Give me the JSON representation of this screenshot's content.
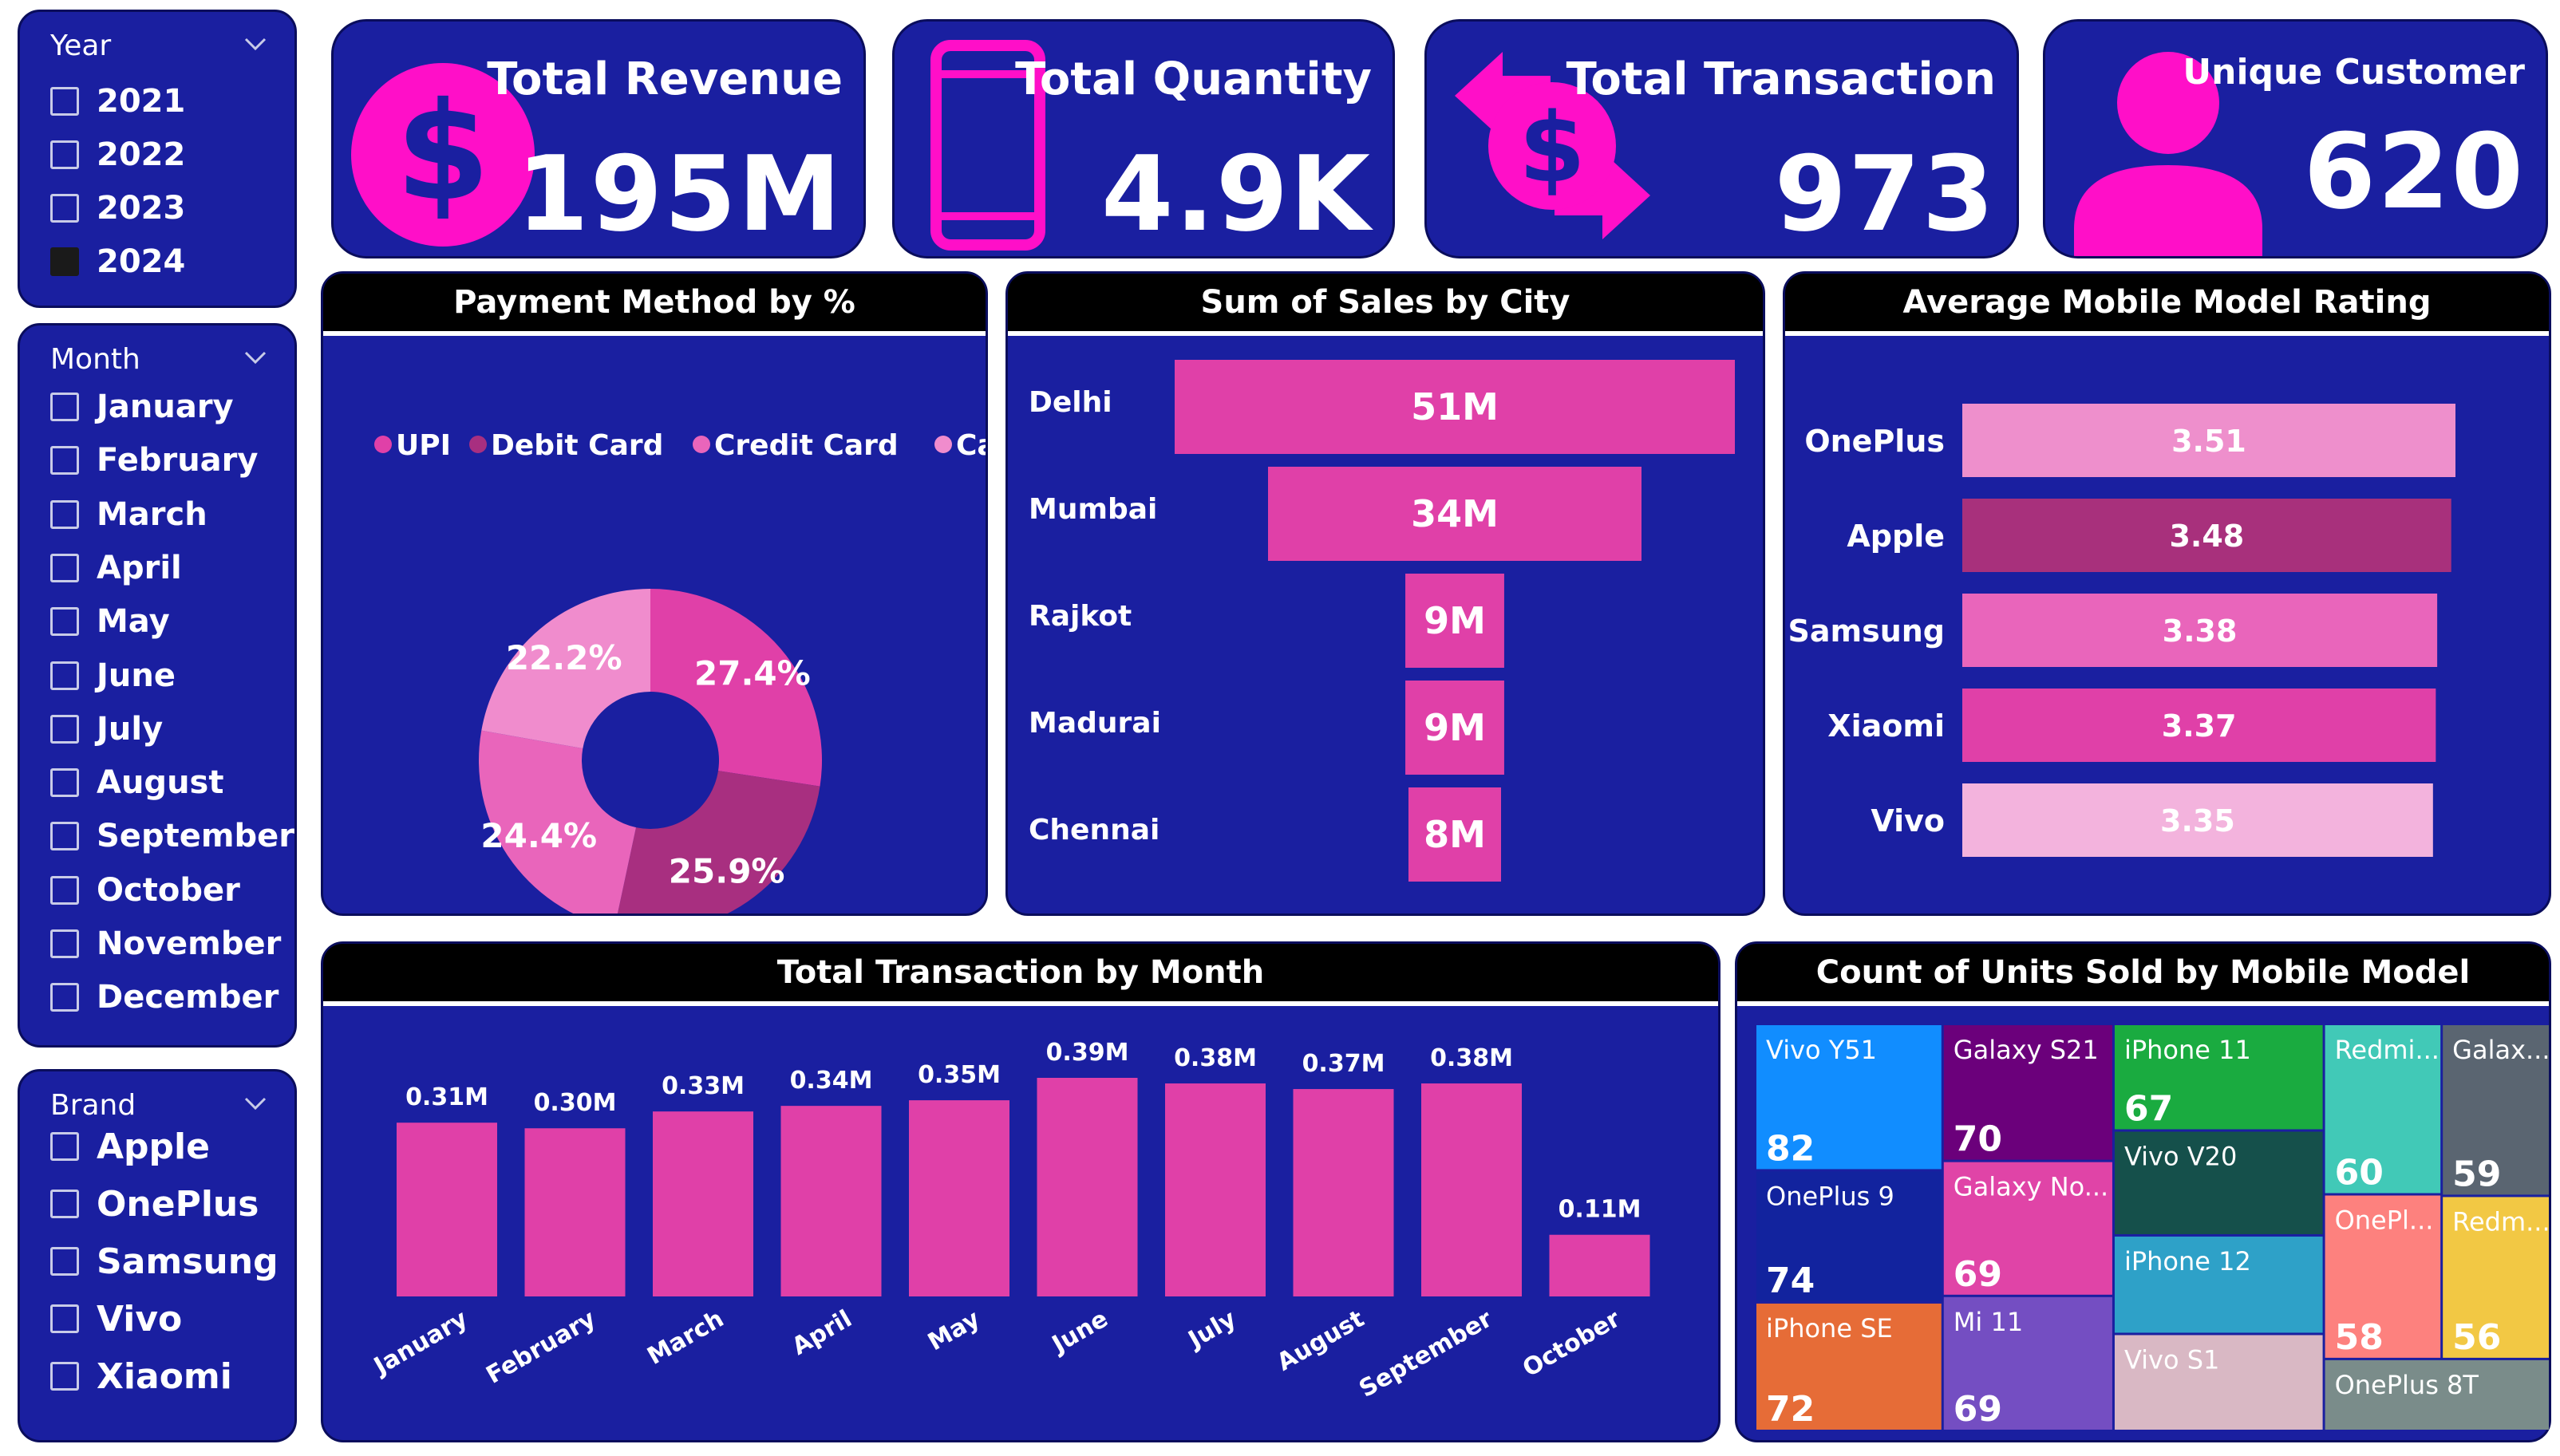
{
  "colors": {
    "panel": "#1a1fa0",
    "panel_border": "#0a0d5c",
    "accent": "#e040a8",
    "icon_magenta": "#ff0fc8",
    "header_black": "#000000"
  },
  "slicers": {
    "year": {
      "title": "Year",
      "items": [
        {
          "label": "2021",
          "checked": false
        },
        {
          "label": "2022",
          "checked": false
        },
        {
          "label": "2023",
          "checked": false
        },
        {
          "label": "2024",
          "checked": true
        }
      ]
    },
    "month": {
      "title": "Month",
      "items": [
        {
          "label": "January",
          "checked": false
        },
        {
          "label": "February",
          "checked": false
        },
        {
          "label": "March",
          "checked": false
        },
        {
          "label": "April",
          "checked": false
        },
        {
          "label": "May",
          "checked": false
        },
        {
          "label": "June",
          "checked": false
        },
        {
          "label": "July",
          "checked": false
        },
        {
          "label": "August",
          "checked": false
        },
        {
          "label": "September",
          "checked": false
        },
        {
          "label": "October",
          "checked": false
        },
        {
          "label": "November",
          "checked": false
        },
        {
          "label": "December",
          "checked": false
        }
      ]
    },
    "brand": {
      "title": "Brand",
      "items": [
        {
          "label": "Apple",
          "checked": false
        },
        {
          "label": "OnePlus",
          "checked": false
        },
        {
          "label": "Samsung",
          "checked": false
        },
        {
          "label": "Vivo",
          "checked": false
        },
        {
          "label": "Xiaomi",
          "checked": false
        }
      ]
    }
  },
  "kpis": {
    "revenue": {
      "title": "Total Revenue",
      "value": "195M",
      "icon": "dollar-circle-icon"
    },
    "quantity": {
      "title": "Total Quantity",
      "value": "4.9K",
      "icon": "mobile-phone-icon"
    },
    "transaction": {
      "title": "Total Transaction",
      "value": "973",
      "icon": "money-exchange-icon"
    },
    "customer": {
      "title": "Unique Customer",
      "value": "620",
      "icon": "user-icon"
    }
  },
  "chart_data": [
    {
      "id": "payment",
      "type": "pie",
      "title": "Payment Method by %",
      "legend_position": "top",
      "slices": [
        {
          "label": "UPI",
          "value": 27.4,
          "display": "27.4%",
          "color": "#e040a8"
        },
        {
          "label": "Debit Card",
          "value": 25.9,
          "display": "25.9%",
          "color": "#a82f80"
        },
        {
          "label": "Credit Card",
          "value": 24.4,
          "display": "24.4%",
          "color": "#e965bb"
        },
        {
          "label": "Cash",
          "value": 22.2,
          "display": "22.2%",
          "color": "#f08ccd"
        }
      ]
    },
    {
      "id": "city",
      "type": "bar",
      "orientation": "funnel",
      "title": "Sum of Sales by City",
      "categories": [
        "Delhi",
        "Mumbai",
        "Rajkot",
        "Madurai",
        "Chennai"
      ],
      "values": [
        51,
        34,
        9,
        9,
        8
      ],
      "labels": [
        "51M",
        "34M",
        "9M",
        "9M",
        "8M"
      ],
      "unit": "M"
    },
    {
      "id": "rating",
      "type": "bar",
      "orientation": "horizontal",
      "title": "Average Mobile Model Rating",
      "categories": [
        "OnePlus",
        "Apple",
        "Samsung",
        "Xiaomi",
        "Vivo"
      ],
      "values": [
        3.51,
        3.48,
        3.38,
        3.37,
        3.35
      ],
      "labels": [
        "3.51",
        "3.48",
        "3.38",
        "3.37",
        "3.35"
      ],
      "colors": [
        "#ee8fcc",
        "#a8307c",
        "#e965bb",
        "#e040a8",
        "#f3b3dd"
      ]
    },
    {
      "id": "monthly",
      "type": "bar",
      "title": "Total Transaction by Month",
      "categories": [
        "January",
        "February",
        "March",
        "April",
        "May",
        "June",
        "July",
        "August",
        "September",
        "October"
      ],
      "values": [
        0.31,
        0.3,
        0.33,
        0.34,
        0.35,
        0.39,
        0.38,
        0.37,
        0.38,
        0.11
      ],
      "labels": [
        "0.31M",
        "0.30M",
        "0.33M",
        "0.34M",
        "0.35M",
        "0.39M",
        "0.38M",
        "0.37M",
        "0.38M",
        "0.11M"
      ]
    },
    {
      "id": "units",
      "type": "treemap",
      "title": "Count of Units Sold by Mobile Model",
      "items": [
        {
          "label": "Vivo Y51",
          "value": 82,
          "color": "#118dff"
        },
        {
          "label": "OnePlus 9",
          "value": 74,
          "color": "#12239e"
        },
        {
          "label": "iPhone SE",
          "value": 72,
          "color": "#e66c37"
        },
        {
          "label": "Galaxy S21",
          "value": 70,
          "color": "#6b007b"
        },
        {
          "label": "Galaxy No...",
          "value": 69,
          "color": "#e044a7"
        },
        {
          "label": "Mi 11",
          "value": 69,
          "color": "#744ec2"
        },
        {
          "label": "iPhone 11",
          "value": 67,
          "color": "#1aab40"
        },
        {
          "label": "Vivo V20",
          "value": 66,
          "color": "#15504b",
          "show_value": false
        },
        {
          "label": "iPhone 12",
          "value": 62,
          "color": "#2ea1c8",
          "show_value": false
        },
        {
          "label": "Vivo S1",
          "value": 61,
          "color": "#d9b8c4",
          "show_value": false
        },
        {
          "label": "Redmi...",
          "value": 60,
          "color": "#41c9b7"
        },
        {
          "label": "Galax...",
          "value": 59,
          "color": "#5a6571"
        },
        {
          "label": "OnePl...",
          "value": 58,
          "color": "#fd817e"
        },
        {
          "label": "Redm...",
          "value": 56,
          "color": "#f2c844"
        },
        {
          "label": "OnePlus 8T",
          "value": 50,
          "color": "#7a8c8a",
          "show_value": false
        }
      ]
    }
  ]
}
